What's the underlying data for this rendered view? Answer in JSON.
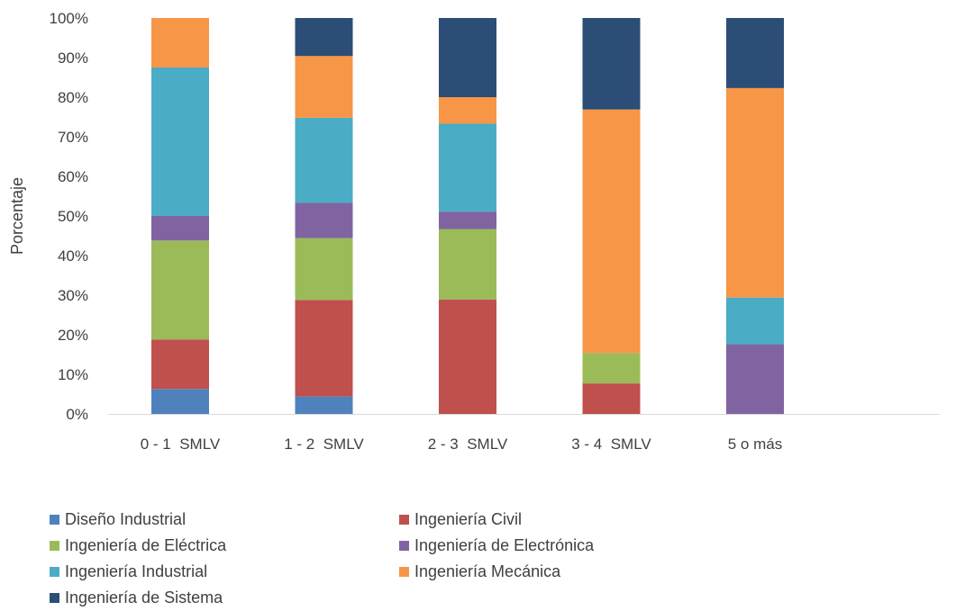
{
  "chart_data": {
    "type": "bar",
    "stacked": true,
    "normalized": true,
    "title": "",
    "xlabel": "",
    "ylabel": "Porcentaje",
    "ylim": [
      0,
      100
    ],
    "yticks": [
      "0%",
      "10%",
      "20%",
      "30%",
      "40%",
      "50%",
      "60%",
      "70%",
      "80%",
      "90%",
      "100%"
    ],
    "categories": [
      "0 - 1  SMLV",
      "1 - 2  SMLV",
      "2 - 3  SMLV",
      "3 - 4  SMLV",
      "5 o más"
    ],
    "legend_position": "bottom",
    "grid": false,
    "series": [
      {
        "name": "Diseño Industrial",
        "color": "#4f81bd",
        "values": [
          6.3,
          4.4,
          0,
          0,
          0
        ]
      },
      {
        "name": "Ingeniería Civil",
        "color": "#c0504d",
        "values": [
          12.5,
          24.4,
          28.9,
          7.7,
          0
        ]
      },
      {
        "name": "Ingeniería de Eléctrica",
        "color": "#9bbb59",
        "values": [
          25.0,
          15.6,
          17.8,
          7.7,
          0
        ]
      },
      {
        "name": "Ingeniería de Electrónica",
        "color": "#8064a2",
        "values": [
          6.2,
          8.9,
          4.4,
          0,
          17.6
        ]
      },
      {
        "name": "Ingeniería Industrial",
        "color": "#4bacc6",
        "values": [
          37.5,
          21.5,
          22.2,
          0,
          11.8
        ]
      },
      {
        "name": "Ingeniería Mecánica",
        "color": "#f79646",
        "values": [
          12.5,
          15.6,
          6.7,
          61.5,
          52.9
        ]
      },
      {
        "name": "Ingeniería de Sistema",
        "color": "#2c4d75",
        "values": [
          0,
          9.6,
          20.0,
          23.1,
          17.7
        ]
      }
    ]
  }
}
